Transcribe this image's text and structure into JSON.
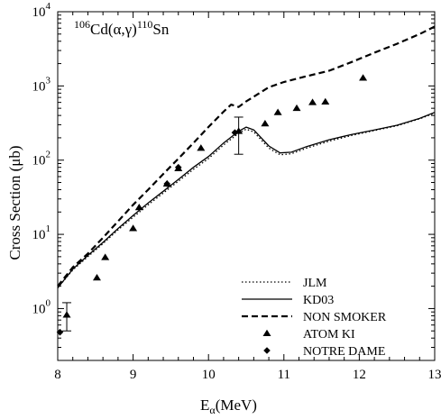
{
  "chart_data": {
    "type": "scatter",
    "title": "106Cd(α,γ)110Sn",
    "title_parts": {
      "sup1": "106",
      "mid": "Cd(α,γ)",
      "sup2": "110",
      "end": "Sn"
    },
    "xlabel": "Eα(MeV)",
    "xlabel_parts": {
      "main": "E",
      "sub": "α",
      "unit": "(MeV)"
    },
    "ylabel": "Cross Section (μb)",
    "x_scale": "linear",
    "y_scale": "log",
    "xlim": [
      8,
      13
    ],
    "ylim": [
      0.2,
      10000
    ],
    "x_ticks": [
      "8",
      "9",
      "10",
      "11",
      "12",
      "13"
    ],
    "y_ticks": [
      {
        "value": 1,
        "exp": "0"
      },
      {
        "value": 10,
        "exp": "1"
      },
      {
        "value": 100,
        "exp": "2"
      },
      {
        "value": 1000,
        "exp": "3"
      },
      {
        "value": 10000,
        "exp": "4"
      }
    ],
    "y_tick_base": "10",
    "legend_position": "bottom-right",
    "series": [
      {
        "name": "JLM",
        "kind": "line",
        "style": "dotted",
        "color": "#000000",
        "points": [
          [
            8.0,
            1.9
          ],
          [
            8.2,
            3.3
          ],
          [
            8.4,
            5.0
          ],
          [
            8.6,
            7.5
          ],
          [
            8.8,
            11.5
          ],
          [
            9.0,
            17.0
          ],
          [
            9.2,
            25.0
          ],
          [
            9.4,
            36.0
          ],
          [
            9.6,
            52.0
          ],
          [
            9.8,
            75.0
          ],
          [
            10.0,
            105.0
          ],
          [
            10.2,
            160.0
          ],
          [
            10.4,
            230.0
          ],
          [
            10.5,
            262.0
          ],
          [
            10.6,
            240.0
          ],
          [
            10.8,
            145.0
          ],
          [
            10.95,
            118.0
          ],
          [
            11.1,
            122.0
          ],
          [
            11.3,
            145.0
          ],
          [
            11.6,
            180.0
          ],
          [
            11.9,
            215.0
          ],
          [
            12.2,
            250.0
          ],
          [
            12.5,
            290.0
          ],
          [
            12.8,
            360.0
          ],
          [
            13.0,
            430.0
          ]
        ]
      },
      {
        "name": "KD03",
        "kind": "line",
        "style": "solid",
        "color": "#000000",
        "points": [
          [
            8.0,
            1.9
          ],
          [
            8.2,
            3.4
          ],
          [
            8.4,
            5.2
          ],
          [
            8.6,
            7.8
          ],
          [
            8.8,
            12.0
          ],
          [
            9.0,
            18.0
          ],
          [
            9.2,
            26.5
          ],
          [
            9.4,
            38.0
          ],
          [
            9.6,
            55.0
          ],
          [
            9.8,
            80.0
          ],
          [
            10.0,
            112.0
          ],
          [
            10.2,
            170.0
          ],
          [
            10.4,
            245.0
          ],
          [
            10.5,
            278.0
          ],
          [
            10.6,
            255.0
          ],
          [
            10.8,
            155.0
          ],
          [
            10.95,
            125.0
          ],
          [
            11.1,
            128.0
          ],
          [
            11.3,
            152.0
          ],
          [
            11.6,
            188.0
          ],
          [
            11.9,
            222.0
          ],
          [
            12.2,
            255.0
          ],
          [
            12.5,
            295.0
          ],
          [
            12.8,
            365.0
          ],
          [
            13.0,
            440.0
          ]
        ]
      },
      {
        "name": "NON SMOKER",
        "kind": "line",
        "style": "dashed",
        "color": "#000000",
        "points": [
          [
            8.0,
            2.0
          ],
          [
            8.2,
            3.6
          ],
          [
            8.4,
            5.5
          ],
          [
            8.6,
            9.0
          ],
          [
            8.8,
            15.0
          ],
          [
            9.0,
            25.0
          ],
          [
            9.2,
            40.0
          ],
          [
            9.4,
            65.0
          ],
          [
            9.6,
            105.0
          ],
          [
            9.8,
            170.0
          ],
          [
            10.0,
            280.0
          ],
          [
            10.2,
            450.0
          ],
          [
            10.3,
            560.0
          ],
          [
            10.4,
            520.0
          ],
          [
            10.5,
            620.0
          ],
          [
            10.8,
            960.0
          ],
          [
            11.0,
            1130.0
          ],
          [
            11.3,
            1350.0
          ],
          [
            11.6,
            1600.0
          ],
          [
            11.9,
            2100.0
          ],
          [
            12.2,
            2800.0
          ],
          [
            12.5,
            3700.0
          ],
          [
            12.8,
            5000.0
          ],
          [
            13.0,
            6300.0
          ]
        ]
      },
      {
        "name": "ATOM KI",
        "kind": "markers",
        "marker": "triangle",
        "color": "#000000",
        "points": [
          [
            8.12,
            0.82
          ],
          [
            8.52,
            2.6
          ],
          [
            8.63,
            4.9
          ],
          [
            9.0,
            12.0
          ],
          [
            9.08,
            23.0
          ],
          [
            9.45,
            48.0
          ],
          [
            9.6,
            77.0
          ],
          [
            9.9,
            145.0
          ],
          [
            10.4,
            245.0
          ],
          [
            10.75,
            310.0
          ],
          [
            10.92,
            440.0
          ],
          [
            11.17,
            500.0
          ],
          [
            11.38,
            600.0
          ],
          [
            11.55,
            610.0
          ],
          [
            12.05,
            1280.0
          ]
        ],
        "error_bars": [
          [
            8.12,
            0.5,
            1.2
          ],
          [
            10.4,
            120.0,
            380.0
          ]
        ]
      },
      {
        "name": "NOTRE DAME",
        "kind": "markers",
        "marker": "diamond",
        "color": "#000000",
        "points": [
          [
            8.03,
            0.48
          ],
          [
            9.45,
            48.0
          ],
          [
            9.6,
            80.0
          ],
          [
            10.35,
            235.0
          ]
        ]
      }
    ]
  }
}
